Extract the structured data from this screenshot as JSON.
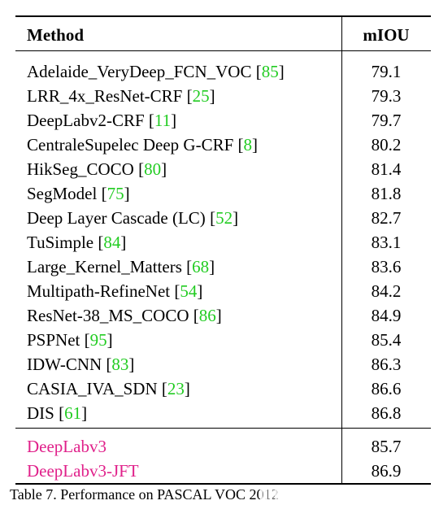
{
  "header": {
    "method": "Method",
    "miou": "mIOU"
  },
  "rows": [
    {
      "method": "Adelaide_VeryDeep_FCN_VOC",
      "ref": "85",
      "score": "79.1"
    },
    {
      "method": "LRR_4x_ResNet-CRF",
      "ref": "25",
      "score": "79.3"
    },
    {
      "method": "DeepLabv2-CRF",
      "ref": "11",
      "score": "79.7"
    },
    {
      "method": "CentraleSupelec Deep G-CRF",
      "ref": "8",
      "score": "80.2"
    },
    {
      "method": "HikSeg_COCO",
      "ref": "80",
      "score": "81.4"
    },
    {
      "method": "SegModel",
      "ref": "75",
      "score": "81.8"
    },
    {
      "method": "Deep Layer Cascade (LC)",
      "ref": "52",
      "score": "82.7"
    },
    {
      "method": "TuSimple",
      "ref": "84",
      "score": "83.1"
    },
    {
      "method": "Large_Kernel_Matters",
      "ref": "68",
      "score": "83.6"
    },
    {
      "method": "Multipath-RefineNet",
      "ref": "54",
      "score": "84.2"
    },
    {
      "method": "ResNet-38_MS_COCO",
      "ref": "86",
      "score": "84.9"
    },
    {
      "method": "PSPNet",
      "ref": "95",
      "score": "85.4"
    },
    {
      "method": "IDW-CNN",
      "ref": "83",
      "score": "86.3"
    },
    {
      "method": "CASIA_IVA_SDN",
      "ref": "23",
      "score": "86.6"
    },
    {
      "method": "DIS",
      "ref": "61",
      "score": "86.8"
    }
  ],
  "ours": [
    {
      "method": "DeepLabv3",
      "score": "85.7"
    },
    {
      "method": "DeepLabv3-JFT",
      "score": "86.9"
    }
  ],
  "caption": "Table 7. Performance on PASCAL VOC 2012",
  "colors": {
    "citation": "#22cc22",
    "highlight": "#e0208a"
  }
}
